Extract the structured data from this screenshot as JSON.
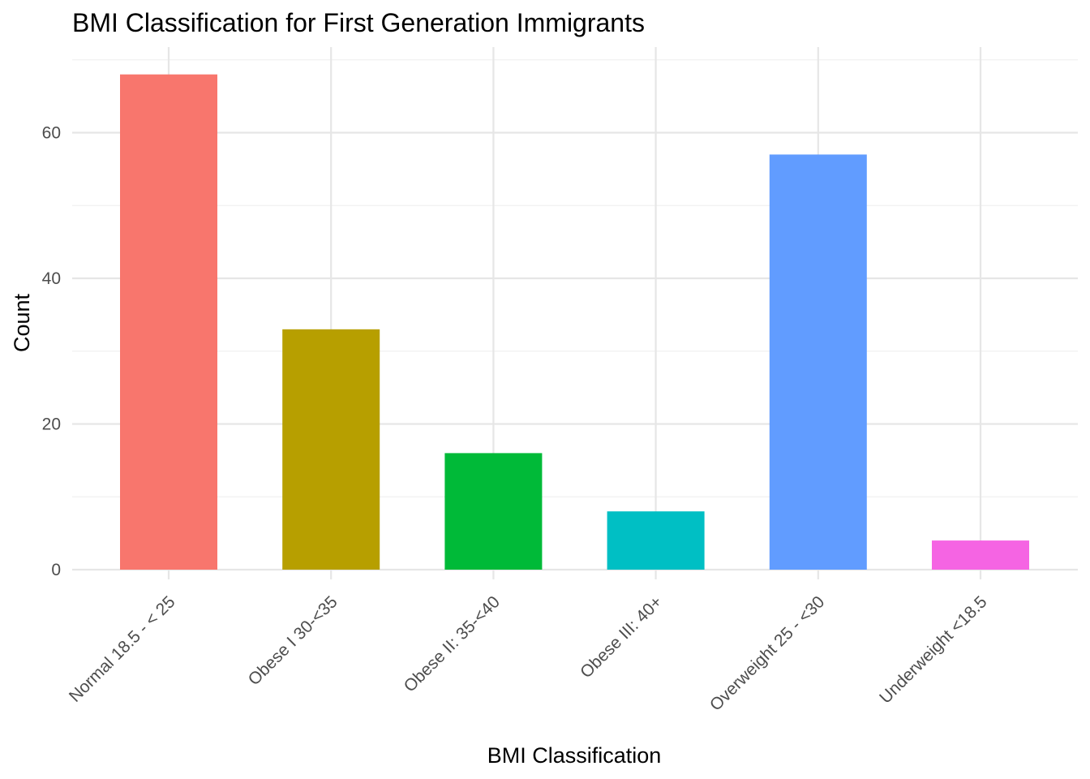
{
  "chart_data": {
    "type": "bar",
    "title": "BMI Classification for First Generation Immigrants",
    "xlabel": "BMI Classification",
    "ylabel": "Count",
    "categories": [
      "Normal 18.5 - < 25",
      "Obese I 30-<35",
      "Obese II: 35-<40",
      "Obese III: 40+",
      "Overweight 25 - <30",
      "Underweight <18.5"
    ],
    "values": [
      68,
      33,
      16,
      8,
      57,
      4
    ],
    "colors": [
      "#F8766D",
      "#B79F00",
      "#00BA38",
      "#00BFC4",
      "#619CFF",
      "#F564E3"
    ],
    "yticks": [
      0,
      20,
      40,
      60
    ],
    "ylim": [
      -1.5,
      70
    ],
    "grid": true,
    "legend": "none"
  }
}
